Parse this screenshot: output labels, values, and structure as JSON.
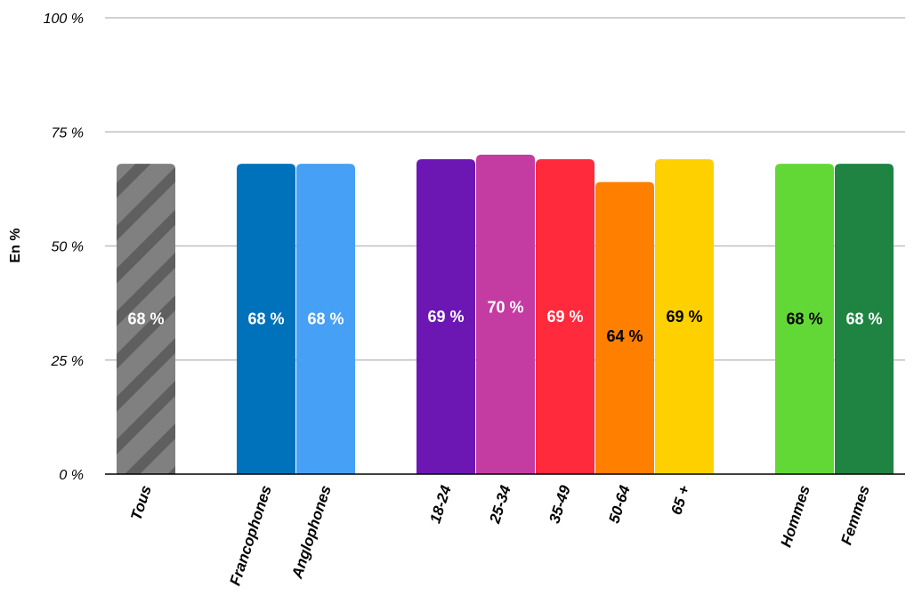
{
  "chart_data": {
    "type": "bar",
    "ylabel": "En %",
    "ylim": [
      0,
      100
    ],
    "yticks": [
      {
        "value": 0,
        "label": "0 %"
      },
      {
        "value": 25,
        "label": "25 %"
      },
      {
        "value": 50,
        "label": "50 %"
      },
      {
        "value": 75,
        "label": "75 %"
      },
      {
        "value": 100,
        "label": "100 %"
      }
    ],
    "grid": true,
    "bars": [
      {
        "category": "Tous",
        "value": 68,
        "label": "68 %",
        "color": "#808080",
        "stripe_color": "#5f5f5f",
        "label_color": "#ffffff",
        "group": 0
      },
      {
        "category": "Francophones",
        "value": 68,
        "label": "68 %",
        "color": "#0072BB",
        "label_color": "#ffffff",
        "group": 1
      },
      {
        "category": "Anglophones",
        "value": 68,
        "label": "68 %",
        "color": "#46A0F5",
        "label_color": "#ffffff",
        "group": 1
      },
      {
        "category": "18-24",
        "value": 69,
        "label": "69 %",
        "color": "#6C17B4",
        "label_color": "#ffffff",
        "group": 2
      },
      {
        "category": "25-34",
        "value": 70,
        "label": "70 %",
        "color": "#C43BA2",
        "label_color": "#ffffff",
        "group": 2
      },
      {
        "category": "35-49",
        "value": 69,
        "label": "69 %",
        "color": "#FF2A3B",
        "label_color": "#ffffff",
        "group": 2
      },
      {
        "category": "50-64",
        "value": 64,
        "label": "64 %",
        "color": "#FF7F00",
        "label_color": "#000000",
        "group": 2
      },
      {
        "category": "65 +",
        "value": 69,
        "label": "69 %",
        "color": "#FFD000",
        "label_color": "#000000",
        "group": 2
      },
      {
        "category": "Hommes",
        "value": 68,
        "label": "68 %",
        "color": "#62D836",
        "label_color": "#000000",
        "group": 3
      },
      {
        "category": "Femmes",
        "value": 68,
        "label": "68 %",
        "color": "#1F8442",
        "label_color": "#ffffff",
        "group": 3
      }
    ]
  }
}
